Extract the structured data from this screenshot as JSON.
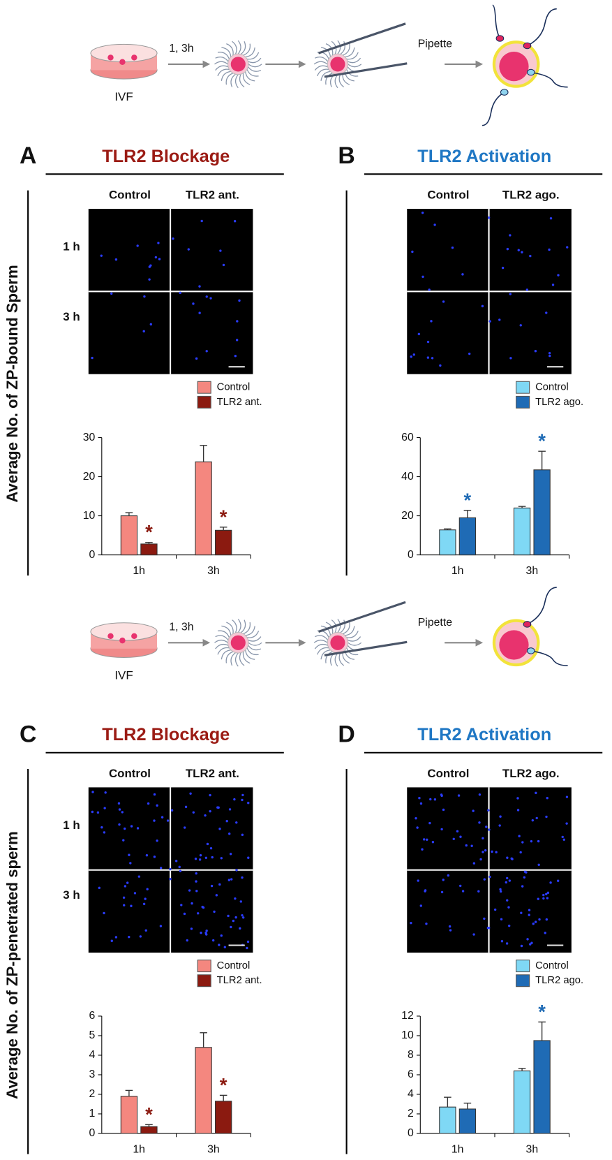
{
  "diagrams": [
    {
      "time": "1, 3h",
      "dish": "IVF",
      "tool": "Pipette"
    },
    {
      "time": "1, 3h",
      "dish": "IVF",
      "tool": "Pipette"
    }
  ],
  "y_axis_labels": [
    "Average No. of ZP-bound Sperm",
    "Average No. of ZP-penetrated sperm"
  ],
  "chart_data": [
    {
      "panel": "A",
      "title": "TLR2 Blockage",
      "type": "bar",
      "title_color": "#9b1b14",
      "image_columns": [
        "Control",
        "TLR2 ant."
      ],
      "image_rows": [
        "1 h",
        "3 h"
      ],
      "categories": [
        "1h",
        "3h"
      ],
      "series": [
        {
          "name": "Control",
          "color": "#f4877f",
          "values": [
            10.0,
            23.8
          ],
          "errors": [
            0.8,
            4.2
          ],
          "markers": [
            null,
            null
          ]
        },
        {
          "name": "TLR2 ant.",
          "color": "#8b1a10",
          "values": [
            2.8,
            6.3
          ],
          "errors": [
            0.4,
            0.8
          ],
          "markers": [
            "*",
            "*"
          ]
        }
      ],
      "ylim": [
        0,
        30
      ],
      "yticks": [
        0,
        10,
        20,
        30
      ]
    },
    {
      "panel": "B",
      "title": "TLR2 Activation",
      "type": "bar",
      "title_color": "#1f77c4",
      "image_columns": [
        "Control",
        "TLR2 ago."
      ],
      "image_rows": [],
      "categories": [
        "1h",
        "3h"
      ],
      "series": [
        {
          "name": "Control",
          "color": "#7fd8f5",
          "values": [
            12.8,
            24.0
          ],
          "errors": [
            0.5,
            0.8
          ],
          "markers": [
            null,
            null
          ]
        },
        {
          "name": "TLR2 ago.",
          "color": "#1f6bb5",
          "values": [
            19.0,
            43.5
          ],
          "errors": [
            3.8,
            9.5
          ],
          "markers": [
            "*",
            "*"
          ]
        }
      ],
      "ylim": [
        0,
        60
      ],
      "yticks": [
        0,
        20,
        40,
        60
      ]
    },
    {
      "panel": "C",
      "title": "TLR2 Blockage",
      "type": "bar",
      "title_color": "#9b1b14",
      "image_columns": [
        "Control",
        "TLR2 ant."
      ],
      "image_rows": [
        "1 h",
        "3 h"
      ],
      "categories": [
        "1h",
        "3h"
      ],
      "series": [
        {
          "name": "Control",
          "color": "#f4877f",
          "values": [
            1.9,
            4.4
          ],
          "errors": [
            0.3,
            0.75
          ],
          "markers": [
            null,
            null
          ]
        },
        {
          "name": "TLR2 ant.",
          "color": "#8b1a10",
          "values": [
            0.35,
            1.65
          ],
          "errors": [
            0.1,
            0.3
          ],
          "markers": [
            "*",
            "*"
          ]
        }
      ],
      "ylim": [
        0,
        6
      ],
      "yticks": [
        0,
        1,
        2,
        3,
        4,
        5,
        6
      ]
    },
    {
      "panel": "D",
      "title": "TLR2 Activation",
      "type": "bar",
      "title_color": "#1f77c4",
      "image_columns": [
        "Control",
        "TLR2 ago."
      ],
      "image_rows": [],
      "categories": [
        "1h",
        "3h"
      ],
      "series": [
        {
          "name": "Control",
          "color": "#7fd8f5",
          "values": [
            2.7,
            6.4
          ],
          "errors": [
            1.0,
            0.25
          ],
          "markers": [
            null,
            null
          ]
        },
        {
          "name": "TLR2 ago.",
          "color": "#1f6bb5",
          "values": [
            2.5,
            9.5
          ],
          "errors": [
            0.6,
            1.9
          ],
          "markers": [
            null,
            "*"
          ]
        }
      ],
      "ylim": [
        0,
        12
      ],
      "yticks": [
        0,
        2,
        4,
        6,
        8,
        10,
        12
      ]
    }
  ]
}
